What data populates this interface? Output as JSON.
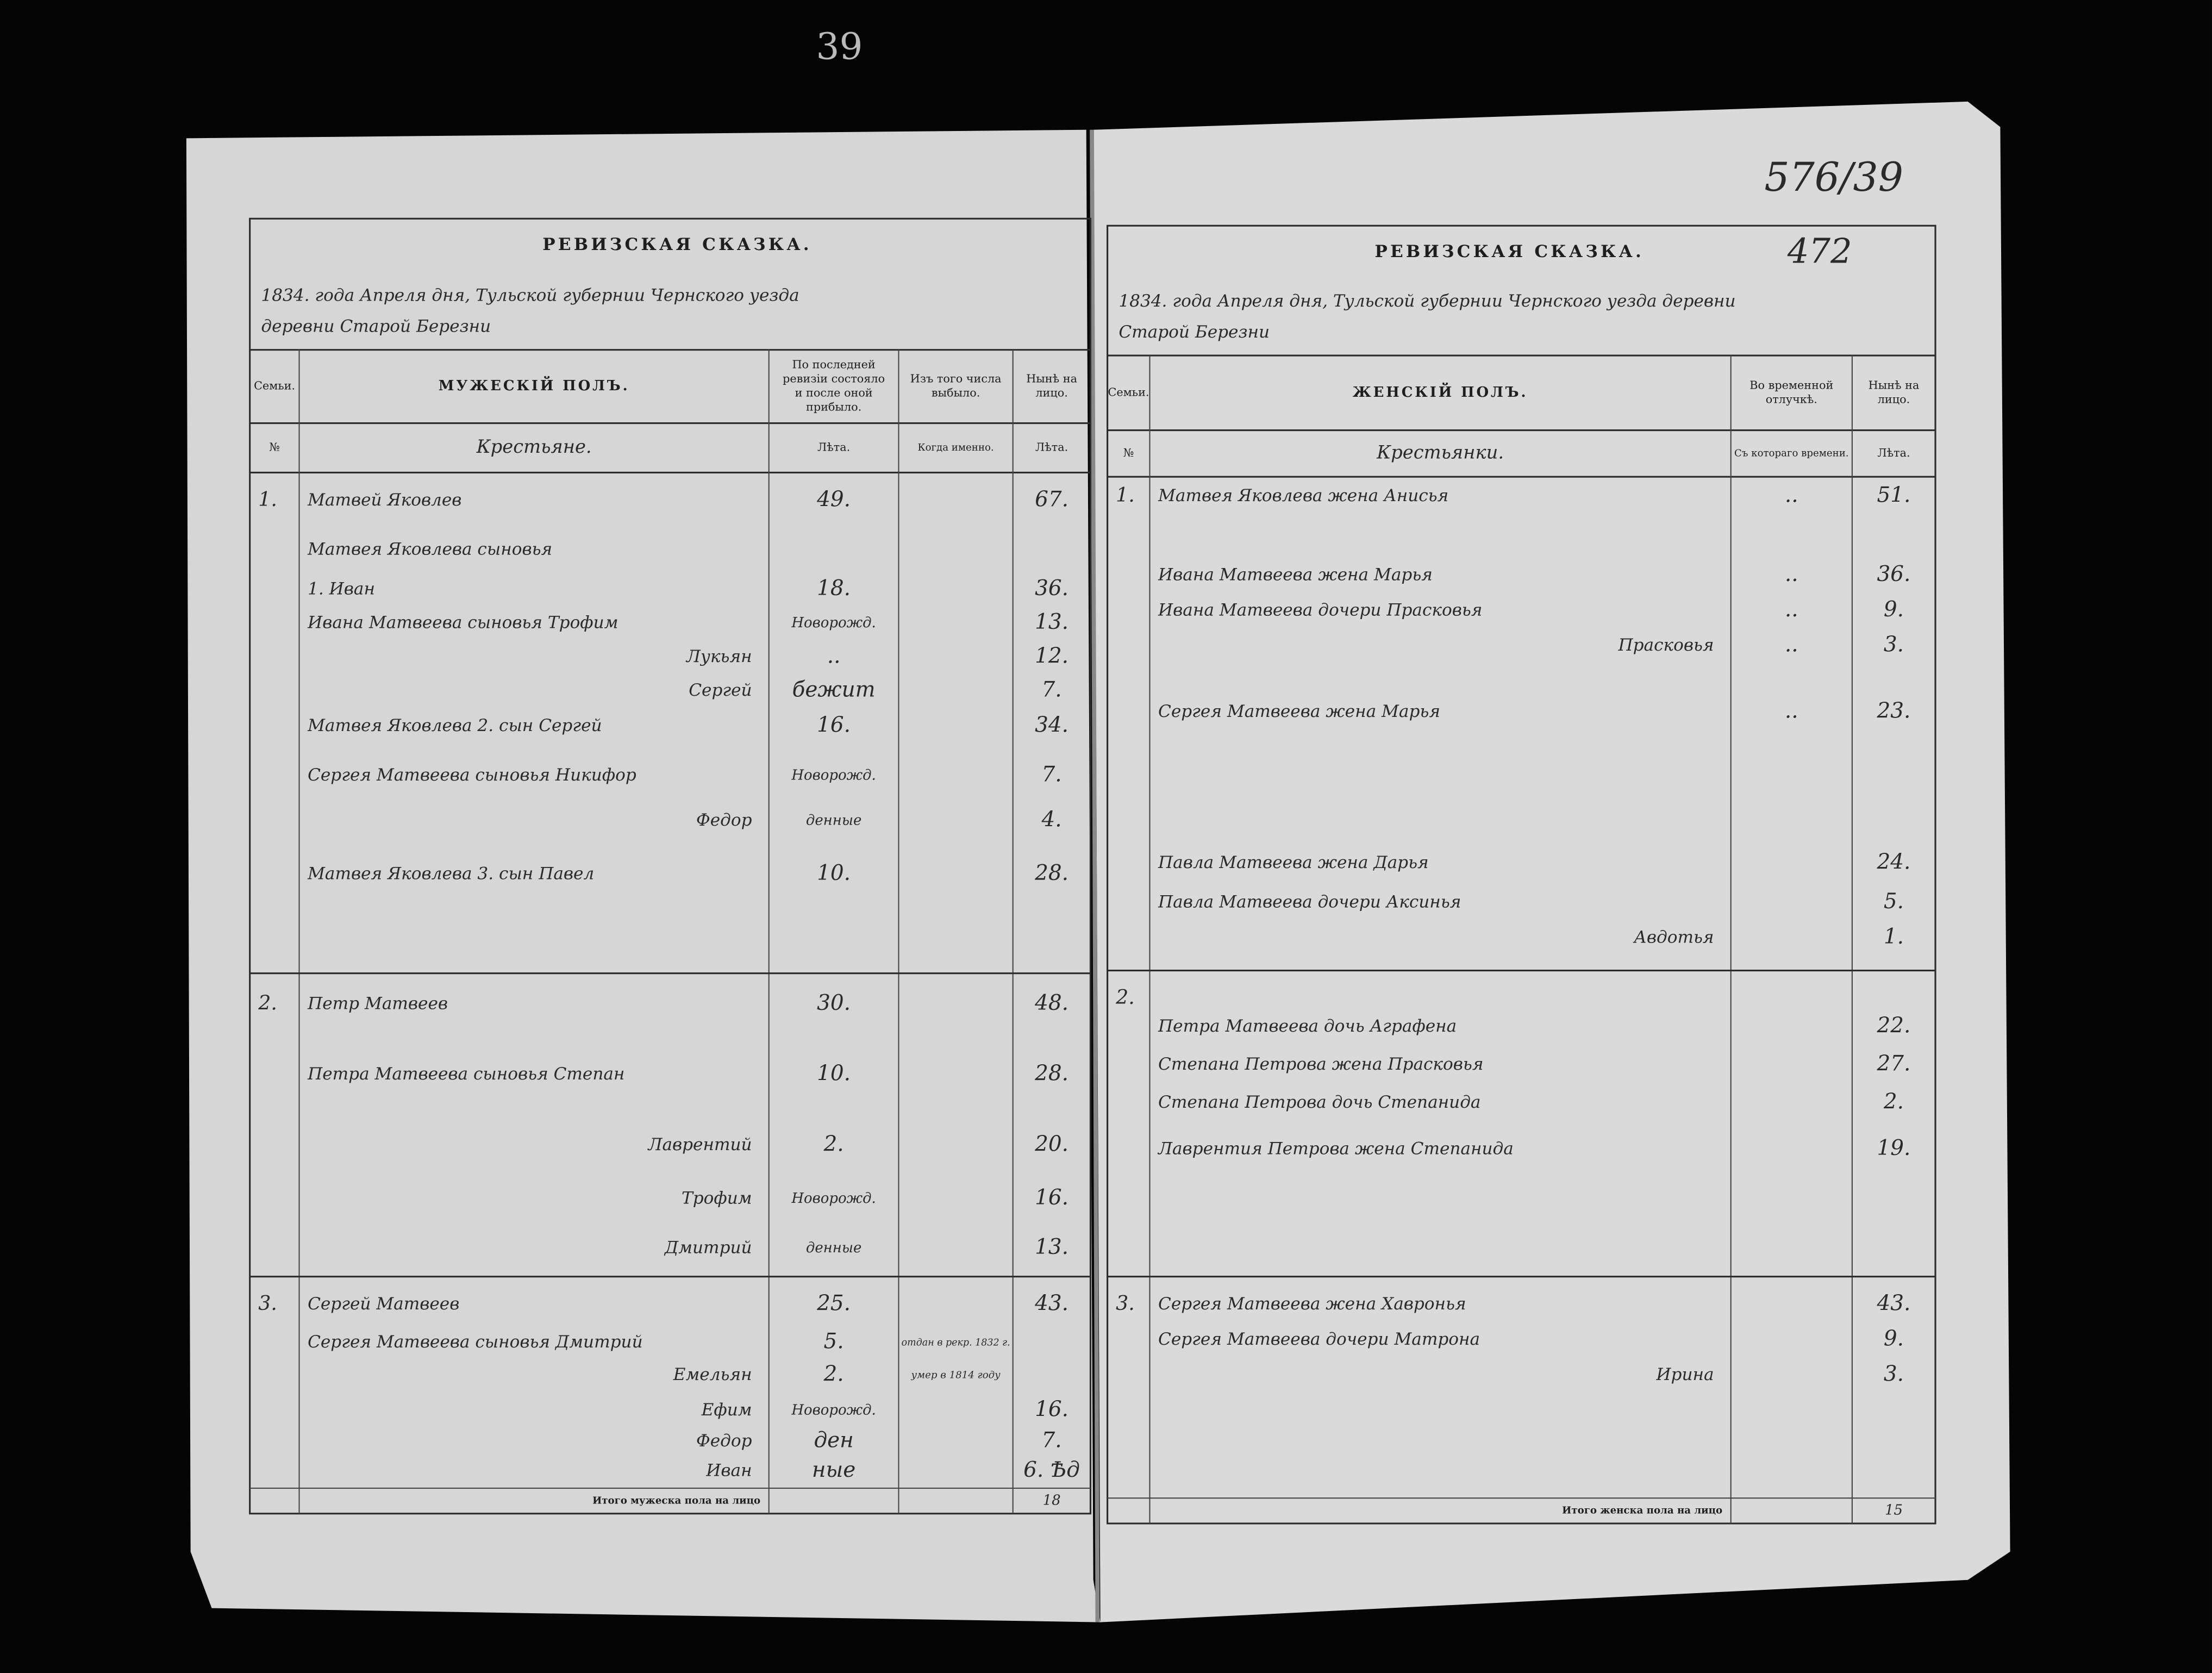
{
  "page_number": "39",
  "corner_number": "576/39",
  "left": {
    "title": "РЕВИЗСКАЯ СКАЗКА.",
    "dateline": "1834. года Апреля дня, Тульской губернии Чернского уезда",
    "place": "деревни Старой Березни",
    "headers": {
      "family": [
        "Семьи."
      ],
      "section": "МУЖЕСКІЙ ПОЛЪ.",
      "prev": [
        "По последней",
        "ревизіи состояло",
        "и после оной",
        "прибыло."
      ],
      "left": [
        "Изъ того числа",
        "выбыло."
      ],
      "now": [
        "Нынѣ на",
        "лицо."
      ]
    },
    "subheaders": {
      "family": "№",
      "section": "Крестьяне.",
      "prev": "Лѣта.",
      "left": "Когда именно.",
      "now": "Лѣта."
    },
    "rows": [
      {
        "family": "1.",
        "name": "Матвей Яковлев",
        "prev": "49.",
        "now": "67."
      },
      {
        "name": "Матвея Яковлева сыновья"
      },
      {
        "name": "1. Иван",
        "prev": "18.",
        "now": "36."
      },
      {
        "name": "Ивана Матвеева сыновья Трофим",
        "prev": "Новорожд.",
        "now": "13."
      },
      {
        "name": "Лукьян",
        "prev": "..",
        "now": "12."
      },
      {
        "name": "Сергей",
        "prev": "бежит",
        "now": "7."
      },
      {
        "name": "Матвея Яковлева 2. сын Сергей",
        "prev": "16.",
        "now": "34."
      },
      {
        "name": "Сергея Матвеева сыновья Никифор",
        "prev": "Новорожд.",
        "now": "7."
      },
      {
        "name": "Федор",
        "prev": "денные",
        "now": "4."
      },
      {
        "name": "Матвея Яковлева 3. сын Павел",
        "prev": "10.",
        "now": "28."
      },
      {
        "family": "2.",
        "name": "Петр Матвеев",
        "prev": "30.",
        "now": "48."
      },
      {
        "name": "Петра Матвеева сыновья Степан",
        "prev": "10.",
        "now": "28."
      },
      {
        "name": "Лаврентий",
        "prev": "2.",
        "now": "20."
      },
      {
        "name": "Трофим",
        "prev": "Новорожд.",
        "now": "16."
      },
      {
        "name": "Дмитрий",
        "prev": "денные",
        "now": "13."
      },
      {
        "family": "3.",
        "name": "Сергей Матвеев",
        "prev": "25.",
        "now": "43."
      },
      {
        "name": "Сергея Матвеева сыновья Дмитрий",
        "prev": "5.",
        "left": "отдан в рекр. 1832 г."
      },
      {
        "name": "Емельян",
        "prev": "2.",
        "left": "умер в 1814 году"
      },
      {
        "name": "Ефим",
        "prev": "Новорожд.",
        "now": "16."
      },
      {
        "name": "Федор",
        "prev": "ден",
        "now": "7."
      },
      {
        "name": "Иван",
        "prev": "ные",
        "now": "6. Ѣд"
      }
    ],
    "total_label": "Итого мужеска пола на лицо",
    "total": "18"
  },
  "right": {
    "title": "РЕВИЗСКАЯ СКАЗКА.",
    "register": "472",
    "dateline": "1834. года Апреля дня, Тульской губернии Чернского уезда деревни",
    "place": "Старой Березни",
    "headers": {
      "family": [
        "Семьи."
      ],
      "section": "ЖЕНСКІЙ ПОЛЪ.",
      "away": [
        "Во временной",
        "отлучкѣ."
      ],
      "now": [
        "Нынѣ на",
        "лицо."
      ]
    },
    "subheaders": {
      "family": "№",
      "section": "Крестьянки.",
      "away": "Съ котораго времени.",
      "now": "Лѣта."
    },
    "rows": [
      {
        "family": "1.",
        "name": "Матвея Яковлева жена Анисья",
        "away": "..",
        "now": "51."
      },
      {
        "name": "Ивана Матвеева жена Марья",
        "away": "..",
        "now": "36."
      },
      {
        "name": "Ивана Матвеева дочери Прасковья",
        "away": "..",
        "now": "9."
      },
      {
        "name": "Прасковья",
        "away": "..",
        "now": "3."
      },
      {
        "name": "Сергея Матвеева жена Марья",
        "away": "..",
        "now": "23."
      },
      {
        "name": "Павла Матвеева жена Дарья",
        "now": "24."
      },
      {
        "name": "Павла Матвеева дочери Аксинья",
        "now": "5."
      },
      {
        "name": "Авдотья",
        "now": "1."
      },
      {
        "family": "2."
      },
      {
        "name": "Петра Матвеева дочь Аграфена",
        "now": "22."
      },
      {
        "name": "Степана Петрова жена Прасковья",
        "now": "27."
      },
      {
        "name": "Степана Петрова дочь Степанида",
        "now": "2."
      },
      {
        "name": "Лаврентия Петрова жена Степанида",
        "now": "19."
      },
      {
        "family": "3.",
        "name": "Сергея Матвеева жена Хавронья",
        "now": "43."
      },
      {
        "name": "Сергея Матвеева дочери Матрона",
        "now": "9."
      },
      {
        "name": "Ирина",
        "now": "3."
      }
    ],
    "total_label": "Итого женска пола на лицо",
    "total": "15"
  }
}
